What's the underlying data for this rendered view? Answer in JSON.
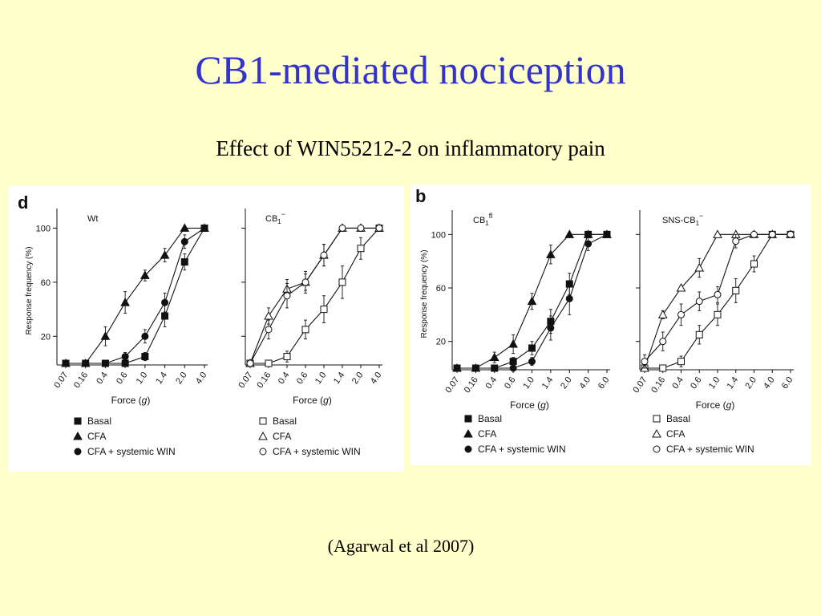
{
  "slide": {
    "title": "CB1-mediated nociception",
    "subtitle": "Effect of WIN55212-2 on inflammatory pain",
    "citation": "(Agarwal et al 2007)"
  },
  "chart_data": [
    {
      "type": "line",
      "panel_letter": "d",
      "title": "Wt",
      "xlabel": "Force (g)",
      "ylabel": "Response frequency (%)",
      "categories": [
        "0.07",
        "0.16",
        "0.4",
        "0.6",
        "1.0",
        "1.4",
        "2.0",
        "4.0"
      ],
      "yticks": [
        20,
        60,
        100
      ],
      "ylim": [
        0,
        105
      ],
      "filled": true,
      "series": [
        {
          "name": "Basal",
          "marker": "square",
          "values": [
            0,
            0,
            0,
            0,
            5,
            35,
            75,
            100
          ],
          "err": [
            0,
            0,
            0,
            0,
            3,
            8,
            6,
            0
          ]
        },
        {
          "name": "CFA",
          "marker": "triangle",
          "values": [
            0,
            0,
            20,
            45,
            65,
            80,
            100,
            100
          ],
          "err": [
            0,
            0,
            7,
            8,
            4,
            5,
            0,
            0
          ]
        },
        {
          "name": "CFA + systemic WIN",
          "marker": "circle",
          "values": [
            0,
            0,
            0,
            5,
            20,
            45,
            90,
            100
          ],
          "err": [
            0,
            0,
            0,
            3,
            5,
            7,
            5,
            0
          ]
        }
      ]
    },
    {
      "type": "line",
      "title": "CB1−",
      "xlabel": "Force (g)",
      "ylabel": "",
      "categories": [
        "0.07",
        "0.16",
        "0.4",
        "0.6",
        "1.0",
        "1.4",
        "2.0",
        "4.0"
      ],
      "yticks": [
        20,
        60,
        100
      ],
      "ylim": [
        0,
        105
      ],
      "filled": false,
      "series": [
        {
          "name": "Basal",
          "marker": "square",
          "values": [
            0,
            0,
            5,
            25,
            40,
            60,
            85,
            100
          ],
          "err": [
            0,
            0,
            4,
            7,
            10,
            12,
            8,
            0
          ]
        },
        {
          "name": "CFA",
          "marker": "triangle",
          "values": [
            0,
            35,
            55,
            60,
            80,
            100,
            100,
            100
          ],
          "err": [
            0,
            6,
            7,
            6,
            8,
            0,
            0,
            0
          ]
        },
        {
          "name": "CFA + systemic WIN",
          "marker": "circle",
          "values": [
            0,
            25,
            50,
            60,
            80,
            100,
            100,
            100
          ],
          "err": [
            0,
            7,
            9,
            8,
            8,
            0,
            0,
            0
          ]
        }
      ]
    },
    {
      "type": "line",
      "panel_letter": "b",
      "title": "CB1fl",
      "xlabel": "Force (g)",
      "ylabel": "Response frequency (%)",
      "categories": [
        "0.07",
        "0.16",
        "0.4",
        "0.6",
        "1.0",
        "1.4",
        "2.0",
        "4.0",
        "6.0"
      ],
      "yticks": [
        20,
        60,
        100
      ],
      "ylim": [
        0,
        105
      ],
      "filled": true,
      "series": [
        {
          "name": "Basal",
          "marker": "square",
          "values": [
            0,
            0,
            0,
            5,
            15,
            35,
            63,
            100,
            100
          ],
          "err": [
            0,
            0,
            0,
            3,
            5,
            9,
            8,
            0,
            0
          ]
        },
        {
          "name": "CFA",
          "marker": "triangle",
          "values": [
            0,
            0,
            8,
            18,
            50,
            85,
            100,
            100,
            100
          ],
          "err": [
            0,
            0,
            4,
            7,
            6,
            7,
            0,
            0,
            0
          ]
        },
        {
          "name": "CFA + systemic WIN",
          "marker": "circle",
          "values": [
            0,
            0,
            0,
            0,
            5,
            30,
            52,
            93,
            100
          ],
          "err": [
            0,
            0,
            0,
            0,
            3,
            9,
            12,
            5,
            0
          ]
        }
      ]
    },
    {
      "type": "line",
      "title": "SNS-CB1−",
      "xlabel": "Force (g)",
      "ylabel": "",
      "categories": [
        "0.07",
        "0.16",
        "0.4",
        "0.6",
        "1.0",
        "1.4",
        "2.0",
        "4.0",
        "6.0"
      ],
      "yticks": [
        20,
        60,
        100
      ],
      "ylim": [
        0,
        105
      ],
      "filled": false,
      "series": [
        {
          "name": "Basal",
          "marker": "square",
          "values": [
            0,
            0,
            5,
            25,
            40,
            58,
            78,
            100,
            100
          ],
          "err": [
            0,
            0,
            4,
            7,
            8,
            9,
            6,
            0,
            0
          ]
        },
        {
          "name": "CFA",
          "marker": "triangle",
          "values": [
            0,
            40,
            60,
            75,
            100,
            100,
            100,
            100,
            100
          ],
          "err": [
            0,
            3,
            0,
            7,
            0,
            0,
            0,
            0,
            0
          ]
        },
        {
          "name": "CFA + systemic WIN",
          "marker": "circle",
          "values": [
            5,
            20,
            40,
            50,
            55,
            95,
            100,
            100,
            100
          ],
          "err": [
            5,
            7,
            8,
            7,
            6,
            5,
            0,
            0,
            0
          ]
        }
      ]
    }
  ]
}
